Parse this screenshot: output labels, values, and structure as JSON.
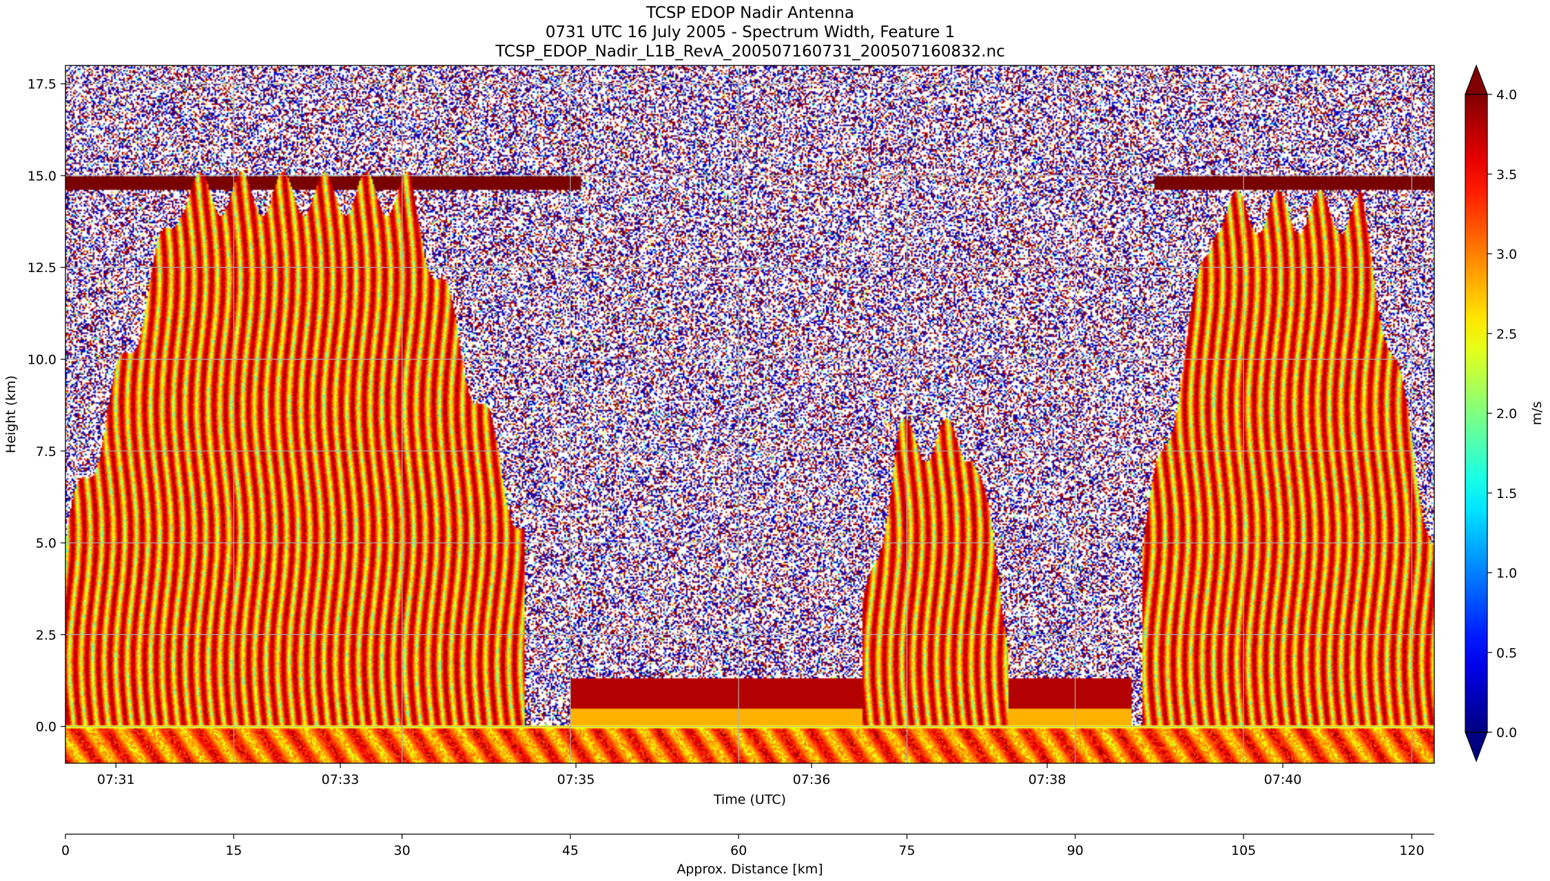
{
  "chart_data": {
    "type": "heatmap",
    "title_lines": [
      "TCSP EDOP Nadir Antenna",
      "0731 UTC 16 July 2005 - Spectrum Width, Feature 1",
      "TCSP_EDOP_Nadir_L1B_RevA_200507160731_200507160832.nc"
    ],
    "xlabel": "Time (UTC)",
    "ylabel": "Height (km)",
    "x_ticks": [
      "07:31",
      "07:33",
      "07:35",
      "07:36",
      "07:38",
      "07:40"
    ],
    "ylim": [
      -1,
      18
    ],
    "y_ticks": [
      0.0,
      2.5,
      5.0,
      7.5,
      10.0,
      12.5,
      15.0,
      17.5
    ],
    "grid": true,
    "distance_axis": {
      "label": "Approx. Distance [km]",
      "range": [
        0,
        122
      ],
      "ticks": [
        0,
        15,
        30,
        45,
        60,
        75,
        90,
        105,
        120
      ]
    },
    "colorbar": {
      "label": "m/s",
      "range": [
        0.0,
        4.0
      ],
      "ticks": [
        0.0,
        0.5,
        1.0,
        1.5,
        2.0,
        2.5,
        3.0,
        3.5,
        4.0
      ],
      "colormap": "jet",
      "extend": "both"
    },
    "features": {
      "tropopause_echo_height_km": 14.8,
      "surface_echo_height_km": 0.0,
      "echo_regions": [
        {
          "distance_km": [
            0,
            41
          ],
          "top_km": 14.5
        },
        {
          "distance_km": [
            71,
            84
          ],
          "top_km": 7.8
        },
        {
          "distance_km": [
            96,
            122
          ],
          "top_km": 14.0
        }
      ]
    }
  }
}
